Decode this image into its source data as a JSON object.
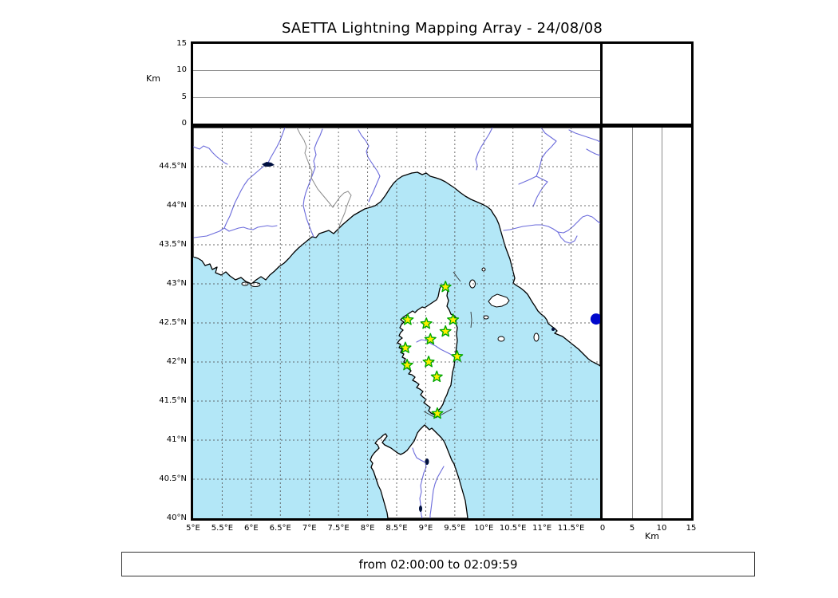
{
  "title": "SAETTA Lightning Mapping Array - 24/08/08",
  "footer": {
    "text": "from 02:00:00 to 02:09:59"
  },
  "colors": {
    "sea": "#b3e7f7",
    "land": "#ffffff",
    "coastline": "#000000",
    "river": "#6b6bdb",
    "country_border": "#8a8a8a",
    "grid": "#555555",
    "station_fill": "#ffee00",
    "station_stroke": "#00a800",
    "extra_marker": "#0008cc",
    "lake": "#001040"
  },
  "altitude_panel": {
    "axis_label": "Km",
    "ticks": [
      {
        "label": "0",
        "km": 0
      },
      {
        "label": "5",
        "km": 5
      },
      {
        "label": "10",
        "km": 10
      },
      {
        "label": "15",
        "km": 15
      }
    ],
    "grid_km": [
      5,
      10
    ],
    "range_km": [
      0,
      15
    ]
  },
  "map_panel": {
    "lat_ticks": [
      {
        "label": "44.5°N",
        "lat": 44.5
      },
      {
        "label": "44°N",
        "lat": 44.0
      },
      {
        "label": "43.5°N",
        "lat": 43.5
      },
      {
        "label": "43°N",
        "lat": 43.0
      },
      {
        "label": "42.5°N",
        "lat": 42.5
      },
      {
        "label": "42°N",
        "lat": 42.0
      },
      {
        "label": "41.5°N",
        "lat": 41.5
      },
      {
        "label": "41°N",
        "lat": 41.0
      },
      {
        "label": "40.5°N",
        "lat": 40.5
      },
      {
        "label": "40°N",
        "lat": 40.0
      }
    ],
    "lon_ticks": [
      {
        "label": "5°E",
        "lon": 5.0
      },
      {
        "label": "5.5°E",
        "lon": 5.5
      },
      {
        "label": "6°E",
        "lon": 6.0
      },
      {
        "label": "6.5°E",
        "lon": 6.5
      },
      {
        "label": "7°E",
        "lon": 7.0
      },
      {
        "label": "7.5°E",
        "lon": 7.5
      },
      {
        "label": "8°E",
        "lon": 8.0
      },
      {
        "label": "8.5°E",
        "lon": 8.5
      },
      {
        "label": "9°E",
        "lon": 9.0
      },
      {
        "label": "9.5°E",
        "lon": 9.5
      },
      {
        "label": "10°E",
        "lon": 10.0
      },
      {
        "label": "10.5°E",
        "lon": 10.5
      },
      {
        "label": "11°E",
        "lon": 11.0
      },
      {
        "label": "11.5°E",
        "lon": 11.5
      }
    ],
    "lon_range": [
      5,
      12
    ],
    "lat_range": [
      40,
      45
    ]
  },
  "km_panel_bottom": {
    "axis_label": "Km",
    "ticks": [
      {
        "label": "0",
        "km": 0
      },
      {
        "label": "5",
        "km": 5
      },
      {
        "label": "10",
        "km": 10
      },
      {
        "label": "15",
        "km": 15
      }
    ],
    "grid_km": [
      5,
      10
    ],
    "range_km": [
      0,
      15
    ]
  },
  "chart_data": {
    "type": "map-scatter",
    "title": "SAETTA Lightning Mapping Array - 24/08/08",
    "time_window": "from 02:00:00 to 02:09:59",
    "map_extent": {
      "lon": [
        5,
        12
      ],
      "lat": [
        40,
        45
      ]
    },
    "altitude_axis_km": [
      0,
      15
    ],
    "grid_step_deg": 0.5,
    "stations": [
      {
        "lon": 9.34,
        "lat": 42.96
      },
      {
        "lon": 8.69,
        "lat": 42.54
      },
      {
        "lon": 9.01,
        "lat": 42.49
      },
      {
        "lon": 9.47,
        "lat": 42.54
      },
      {
        "lon": 9.34,
        "lat": 42.39
      },
      {
        "lon": 9.08,
        "lat": 42.29
      },
      {
        "lon": 8.65,
        "lat": 42.18
      },
      {
        "lon": 9.54,
        "lat": 42.07
      },
      {
        "lon": 9.05,
        "lat": 42.0
      },
      {
        "lon": 8.68,
        "lat": 41.96
      },
      {
        "lon": 9.19,
        "lat": 41.81
      },
      {
        "lon": 9.2,
        "lat": 41.34
      }
    ],
    "extra_marker": {
      "lon": 11.93,
      "lat": 42.55,
      "shape": "circle"
    },
    "lightning_points": []
  }
}
